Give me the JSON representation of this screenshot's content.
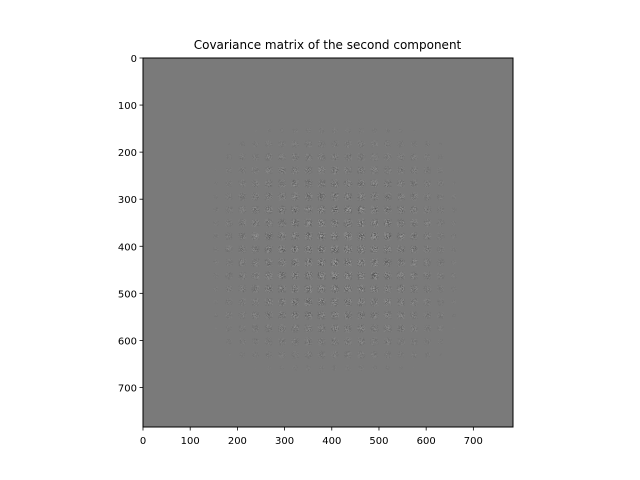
{
  "chart_data": {
    "type": "heatmap",
    "title": "Covariance matrix of the second component",
    "xlabel": "",
    "ylabel": "",
    "matrix_size": [
      784,
      784
    ],
    "xlim": [
      0,
      784
    ],
    "ylim": [
      784,
      0
    ],
    "x_ticks": [
      0,
      100,
      200,
      300,
      400,
      500,
      600,
      700
    ],
    "y_ticks": [
      0,
      100,
      200,
      300,
      400,
      500,
      600,
      700
    ],
    "x_tick_labels": [
      "0",
      "100",
      "200",
      "300",
      "400",
      "500",
      "600",
      "700"
    ],
    "y_tick_labels": [
      "0",
      "100",
      "200",
      "300",
      "400",
      "500",
      "600",
      "700"
    ],
    "colormap": "gray",
    "background_color": "#7a7a7a",
    "grid": false,
    "structure": {
      "image_grid": 28,
      "active_rows": [
        4,
        24
      ],
      "active_cols": [
        4,
        24
      ]
    }
  }
}
